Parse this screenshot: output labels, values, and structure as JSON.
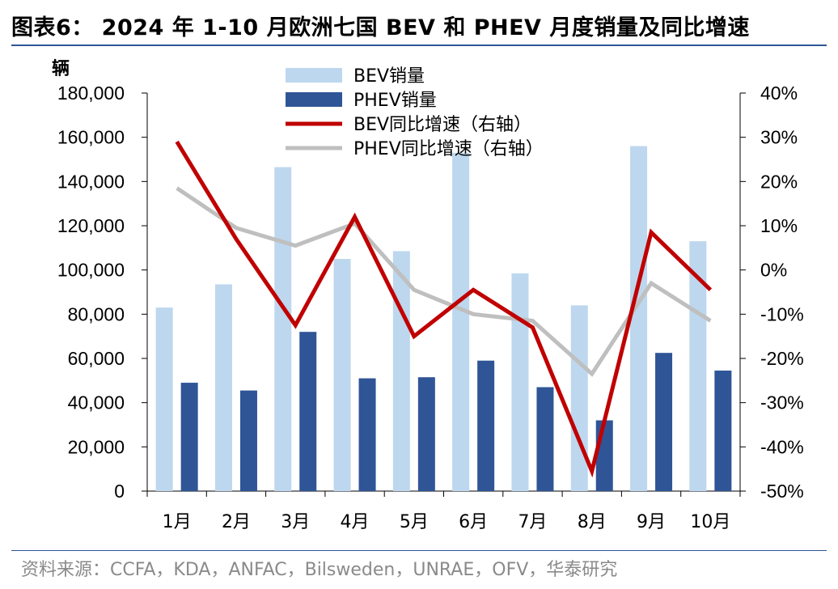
{
  "title": "图表6： 2024 年 1-10 月欧洲七国 BEV 和 PHEV 月度销量及同比增速",
  "source": "资料来源：CCFA，KDA，ANFAC，Bilsweden，UNRAE，OFV，华泰研究",
  "colors": {
    "bev_bar": "#bdd7ee",
    "phev_bar": "#2f5597",
    "bev_line": "#c00000",
    "phev_line": "#bfbfbf",
    "rule": "#2f5597"
  },
  "chart_data": {
    "type": "bar",
    "categories": [
      "1月",
      "2月",
      "3月",
      "4月",
      "5月",
      "6月",
      "7月",
      "8月",
      "9月",
      "10月"
    ],
    "y_left_unit": "辆",
    "y_left_range": [
      0,
      180000
    ],
    "y_left_ticks": [
      "0",
      "20,000",
      "40,000",
      "60,000",
      "80,000",
      "100,000",
      "120,000",
      "140,000",
      "160,000",
      "180,000"
    ],
    "y_right_range": [
      -50,
      40
    ],
    "y_right_ticks": [
      "-50%",
      "-40%",
      "-30%",
      "-20%",
      "-10%",
      "0%",
      "10%",
      "20%",
      "30%",
      "40%"
    ],
    "grid": false,
    "legend_position": "top-center",
    "series": [
      {
        "name": "BEV销量",
        "type": "bar",
        "axis": "left",
        "values": [
          83000,
          93500,
          146500,
          105000,
          108500,
          153000,
          98500,
          84000,
          156000,
          113000
        ]
      },
      {
        "name": "PHEV销量",
        "type": "bar",
        "axis": "left",
        "values": [
          49000,
          45500,
          72000,
          51000,
          51500,
          59000,
          47000,
          32000,
          62500,
          54500
        ]
      },
      {
        "name": "BEV同比增速（右轴）",
        "type": "line",
        "axis": "right",
        "values": [
          29.0,
          7.0,
          -12.5,
          12.0,
          -15.0,
          -4.5,
          -13.0,
          -45.5,
          8.5,
          -4.5
        ]
      },
      {
        "name": "PHEV同比增速（右轴）",
        "type": "line",
        "axis": "right",
        "values": [
          18.5,
          9.5,
          5.5,
          10.5,
          -4.5,
          -10.0,
          -11.5,
          -23.5,
          -3.0,
          -11.5
        ]
      }
    ]
  }
}
